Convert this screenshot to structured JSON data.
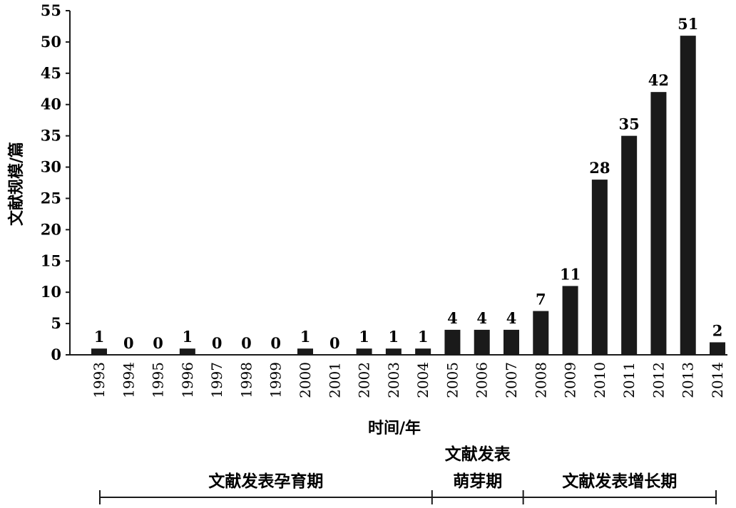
{
  "chart_data": {
    "type": "bar",
    "categories": [
      "1993",
      "1994",
      "1995",
      "1996",
      "1997",
      "1998",
      "1999",
      "2000",
      "2001",
      "2002",
      "2003",
      "2004",
      "2005",
      "2006",
      "2007",
      "2008",
      "2009",
      "2010",
      "2011",
      "2012",
      "2013",
      "2014"
    ],
    "values": [
      1,
      0,
      0,
      1,
      0,
      0,
      0,
      1,
      0,
      1,
      1,
      1,
      4,
      4,
      4,
      7,
      11,
      28,
      35,
      42,
      51,
      2
    ],
    "xlabel": "时间/年",
    "ylabel": "文献规模/篇",
    "ylim": [
      0,
      55
    ],
    "yticks": [
      0,
      5,
      10,
      15,
      20,
      25,
      30,
      35,
      40,
      45,
      50,
      55
    ],
    "grid": false,
    "bar_color": "#1a1a1a"
  },
  "phases": [
    {
      "lines": [
        "文献发表孕育期"
      ],
      "from": "1993",
      "to": "2004"
    },
    {
      "lines": [
        "文献发表",
        "萌芽期"
      ],
      "from": "2005",
      "to": "2007"
    },
    {
      "lines": [
        "文献发表增长期"
      ],
      "from": "2008",
      "to": "2014"
    }
  ]
}
